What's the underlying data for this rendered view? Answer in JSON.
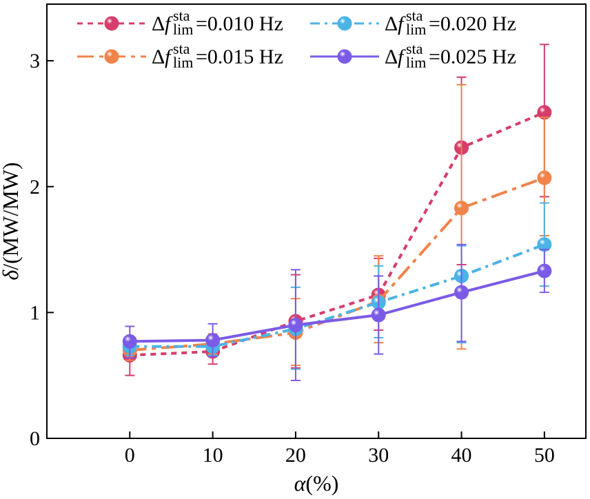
{
  "chart_data": {
    "type": "line",
    "title": "",
    "xlabel": "α(%)",
    "ylabel": "δ/(MW/MW)",
    "x": [
      0,
      10,
      20,
      30,
      40,
      50
    ],
    "xticks": [
      "0",
      "10",
      "20",
      "30",
      "40",
      "50"
    ],
    "yticks": [
      "0",
      "1",
      "2",
      "3"
    ],
    "xlim": [
      -10,
      55
    ],
    "ylim": [
      0,
      3.45
    ],
    "legend_position": "top",
    "series": [
      {
        "name": "Δf_lim^sta=0.010 Hz",
        "legend_prefix": "Δ",
        "legend_f": "f",
        "legend_sup": "sta",
        "legend_sub": "lim",
        "legend_value": "=0.010 Hz",
        "color": "#d63d6b",
        "style": "dashed",
        "values": [
          0.66,
          0.69,
          0.93,
          1.14,
          2.31,
          2.59
        ],
        "err_low": [
          0.5,
          0.59,
          0.56,
          0.86,
          1.38,
          1.92
        ],
        "err_high": [
          0.8,
          0.79,
          1.3,
          1.43,
          2.87,
          3.13
        ]
      },
      {
        "name": "Δf_lim^sta=0.015 Hz",
        "legend_prefix": "Δ",
        "legend_f": "f",
        "legend_sup": "sta",
        "legend_sub": "lim",
        "legend_value": "=0.015 Hz",
        "color": "#f0834a",
        "style": "dashdot-long",
        "values": [
          0.7,
          0.75,
          0.84,
          1.09,
          1.83,
          2.07
        ],
        "err_low": [
          0.62,
          0.67,
          0.58,
          0.76,
          0.71,
          1.61
        ],
        "err_high": [
          0.78,
          0.83,
          1.11,
          1.45,
          2.81,
          2.55
        ]
      },
      {
        "name": "Δf_lim^sta=0.020 Hz",
        "legend_prefix": "Δ",
        "legend_f": "f",
        "legend_sup": "sta",
        "legend_sub": "lim",
        "legend_value": "=0.020 Hz",
        "color": "#4bb3e6",
        "style": "dashdot",
        "values": [
          0.73,
          0.73,
          0.87,
          1.08,
          1.29,
          1.54
        ],
        "err_low": [
          0.66,
          0.66,
          0.55,
          0.8,
          0.76,
          1.21
        ],
        "err_high": [
          0.8,
          0.8,
          1.2,
          1.37,
          1.53,
          1.87
        ]
      },
      {
        "name": "Δf_lim^sta=0.025 Hz",
        "legend_prefix": "Δ",
        "legend_f": "f",
        "legend_sup": "sta",
        "legend_sub": "lim",
        "legend_value": "=0.025 Hz",
        "color": "#7b5be6",
        "style": "solid",
        "values": [
          0.77,
          0.78,
          0.9,
          0.98,
          1.16,
          1.33
        ],
        "err_low": [
          0.64,
          0.65,
          0.46,
          0.67,
          0.77,
          1.16
        ],
        "err_high": [
          0.89,
          0.91,
          1.34,
          1.29,
          1.54,
          1.5
        ]
      }
    ]
  }
}
